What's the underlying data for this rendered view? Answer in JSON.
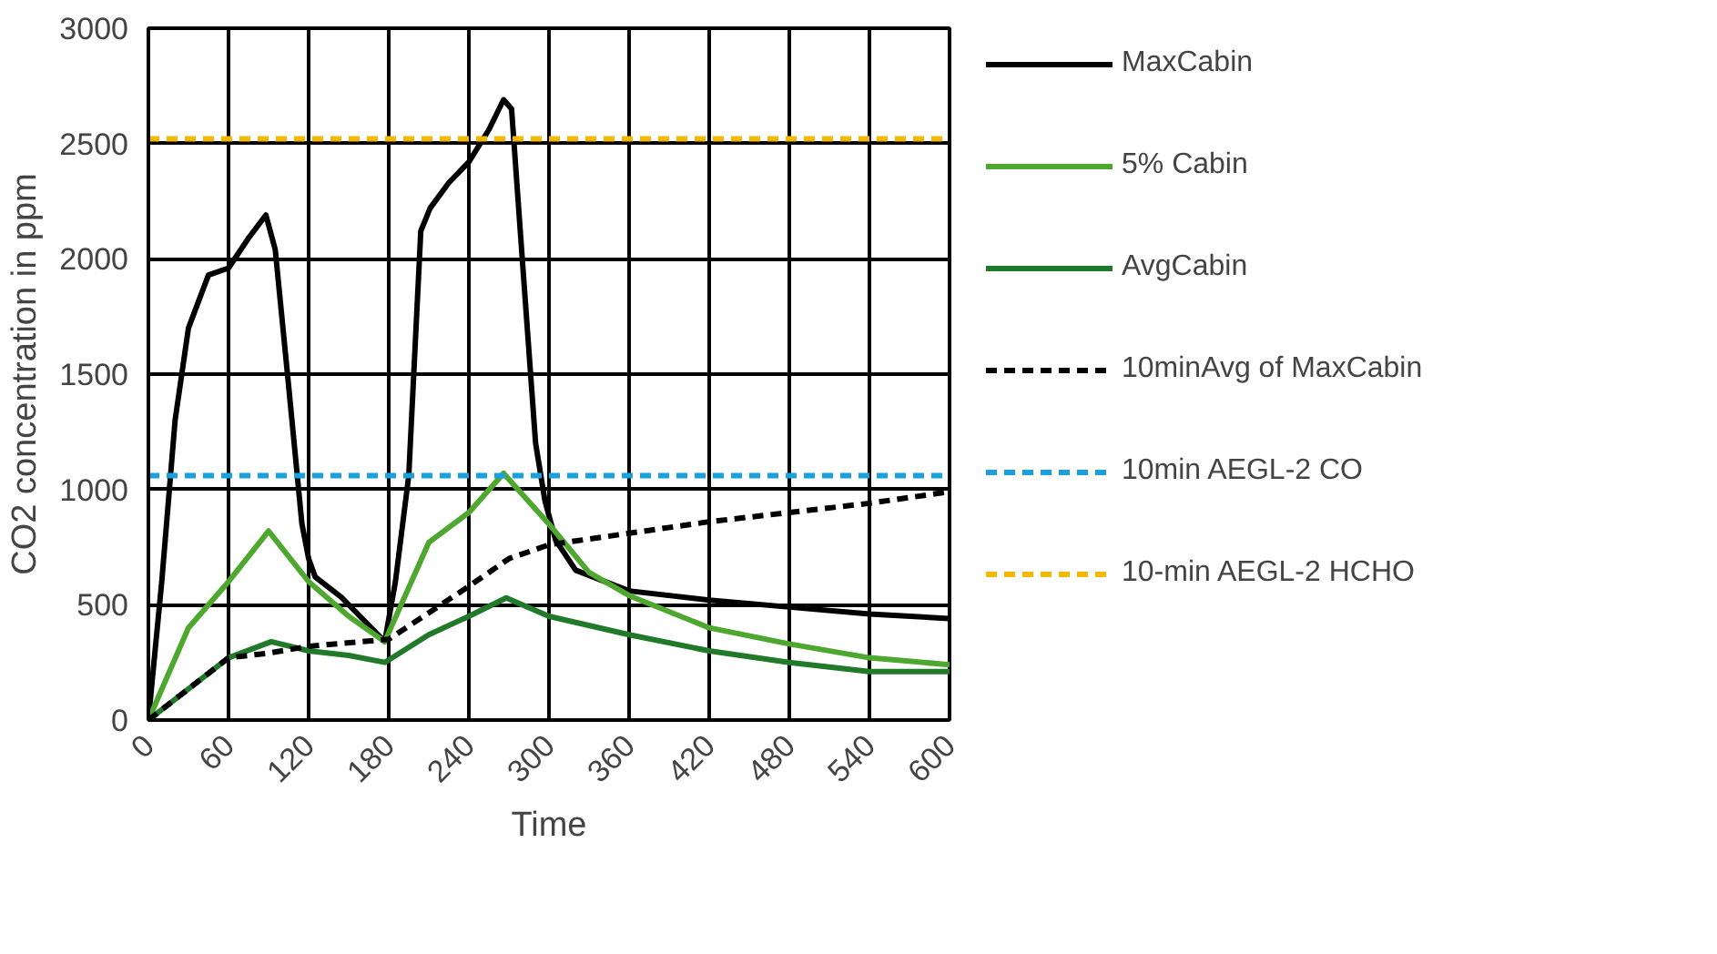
{
  "chart_data": {
    "type": "line",
    "xlabel": "Time",
    "ylabel": "CO2 concentration in ppm",
    "xlim": [
      0,
      600
    ],
    "xticks": [
      0,
      60,
      120,
      180,
      240,
      300,
      360,
      420,
      480,
      540,
      600
    ],
    "ylim": [
      0,
      3000
    ],
    "yticks": [
      0,
      500,
      1000,
      1500,
      2000,
      2500,
      3000
    ],
    "grid": true,
    "legend": "right",
    "marker": "none",
    "series": [
      {
        "name": "MaxCabin",
        "color": "#000000",
        "line_style": "solid",
        "x": [
          0,
          10,
          20,
          30,
          45,
          60,
          75,
          88,
          95,
          105,
          115,
          120,
          125,
          145,
          177,
          185,
          195,
          204,
          211,
          225,
          240,
          255,
          266,
          272,
          280,
          290,
          297,
          305,
          320,
          360,
          420,
          480,
          540,
          600
        ],
        "values": [
          0,
          600,
          1300,
          1700,
          1930,
          1960,
          2090,
          2190,
          2040,
          1450,
          850,
          700,
          620,
          530,
          340,
          600,
          1060,
          2120,
          2220,
          2330,
          2420,
          2560,
          2690,
          2650,
          2000,
          1200,
          950,
          780,
          650,
          560,
          520,
          490,
          460,
          440
        ]
      },
      {
        "name": "5% Cabin",
        "color": "#4ea72e",
        "line_style": "solid",
        "x": [
          0,
          30,
          60,
          90,
          120,
          150,
          177,
          210,
          240,
          266,
          300,
          330,
          360,
          420,
          480,
          540,
          600
        ],
        "values": [
          0,
          400,
          600,
          820,
          600,
          450,
          340,
          770,
          900,
          1070,
          850,
          640,
          540,
          400,
          330,
          270,
          240
        ]
      },
      {
        "name": "AvgCabin",
        "color": "#217a2a",
        "line_style": "solid",
        "x": [
          0,
          60,
          92,
          120,
          150,
          177,
          210,
          240,
          268,
          300,
          360,
          420,
          480,
          540,
          600
        ],
        "values": [
          0,
          270,
          340,
          300,
          280,
          250,
          370,
          450,
          530,
          450,
          370,
          300,
          250,
          210,
          210
        ]
      },
      {
        "name": "10minAvg of MaxCabin",
        "color": "#000000",
        "line_style": "dashed",
        "x": [
          0,
          60,
          90,
          120,
          180,
          240,
          270,
          300,
          360,
          420,
          480,
          540,
          600
        ],
        "values": [
          0,
          270,
          290,
          320,
          350,
          580,
          700,
          760,
          810,
          860,
          900,
          940,
          990
        ]
      },
      {
        "name": "10min AEGL-2 CO",
        "color": "#1aa0dc",
        "line_style": "dashed",
        "x": [
          0,
          600
        ],
        "values": [
          1060,
          1060
        ]
      },
      {
        "name": "10-min AEGL-2 HCHO",
        "color": "#f5b800",
        "line_style": "dashed",
        "x": [
          0,
          600
        ],
        "values": [
          2520,
          2520
        ]
      }
    ]
  }
}
